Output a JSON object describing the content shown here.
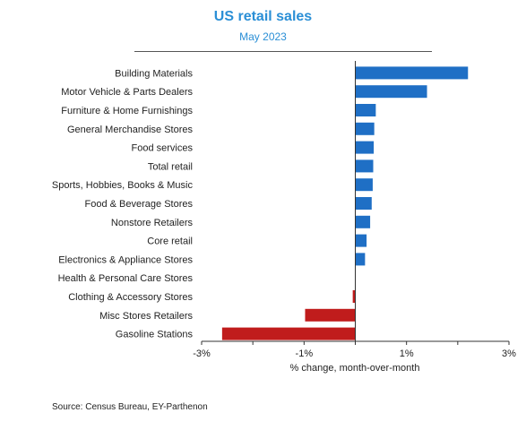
{
  "chart_data": {
    "type": "bar",
    "orientation": "horizontal",
    "title": "US retail sales",
    "subtitle": "May 2023",
    "xlabel": "% change, month-over-month",
    "xlim": [
      -3,
      3
    ],
    "xticks": [
      "-3%",
      "-1%",
      "1%",
      "3%"
    ],
    "xtick_values": [
      -3,
      -1,
      1,
      3
    ],
    "categories": [
      "Building Materials",
      "Motor Vehicle & Parts Dealers",
      "Furniture & Home Furnishings",
      "General Merchandise Stores",
      "Food services",
      "Total retail",
      "Sports, Hobbies, Books & Music",
      "Food & Beverage Stores",
      "Nonstore Retailers",
      "Core retail",
      "Electronics & Appliance Stores",
      "Health & Personal Care Stores",
      "Clothing & Accessory Stores",
      "Misc Stores Retailers",
      "Gasoline Stations"
    ],
    "values": [
      2.2,
      1.4,
      0.4,
      0.37,
      0.36,
      0.35,
      0.34,
      0.32,
      0.29,
      0.22,
      0.19,
      0.0,
      -0.05,
      -0.98,
      -2.6
    ],
    "grid": false,
    "colors": {
      "positive": "#1f6fc5",
      "negative": "#c01c1c"
    }
  },
  "source": "Source: Census Bureau, EY-Parthenon"
}
